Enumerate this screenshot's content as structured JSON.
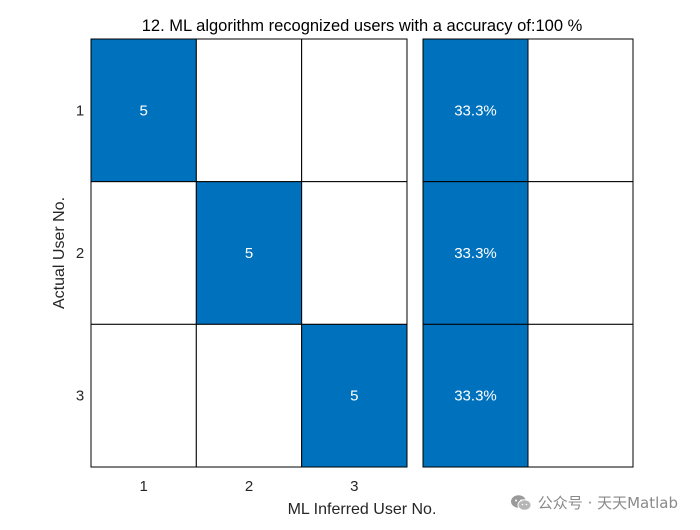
{
  "chart_data": {
    "type": "heatmap",
    "title": "12. ML algorithm recognized users with a accuracy of:100 %",
    "xlabel": "ML Inferred User No.",
    "ylabel": "Actual User No.",
    "x_categories": [
      "1",
      "2",
      "3"
    ],
    "y_categories": [
      "1",
      "2",
      "3"
    ],
    "matrix": [
      [
        5,
        0,
        0
      ],
      [
        0,
        5,
        0
      ],
      [
        0,
        0,
        5
      ]
    ],
    "summary_column": {
      "values": [
        "33.3%",
        "33.3%",
        "33.3%"
      ]
    },
    "colors": {
      "filled": "#0072bd",
      "empty": "#ffffff",
      "grid": "#000000",
      "cell_text": "#ffffff",
      "axis_text": "#262626"
    }
  },
  "watermark": {
    "icon": "wechat-icon",
    "text": "公众号 · 天天Matlab"
  }
}
